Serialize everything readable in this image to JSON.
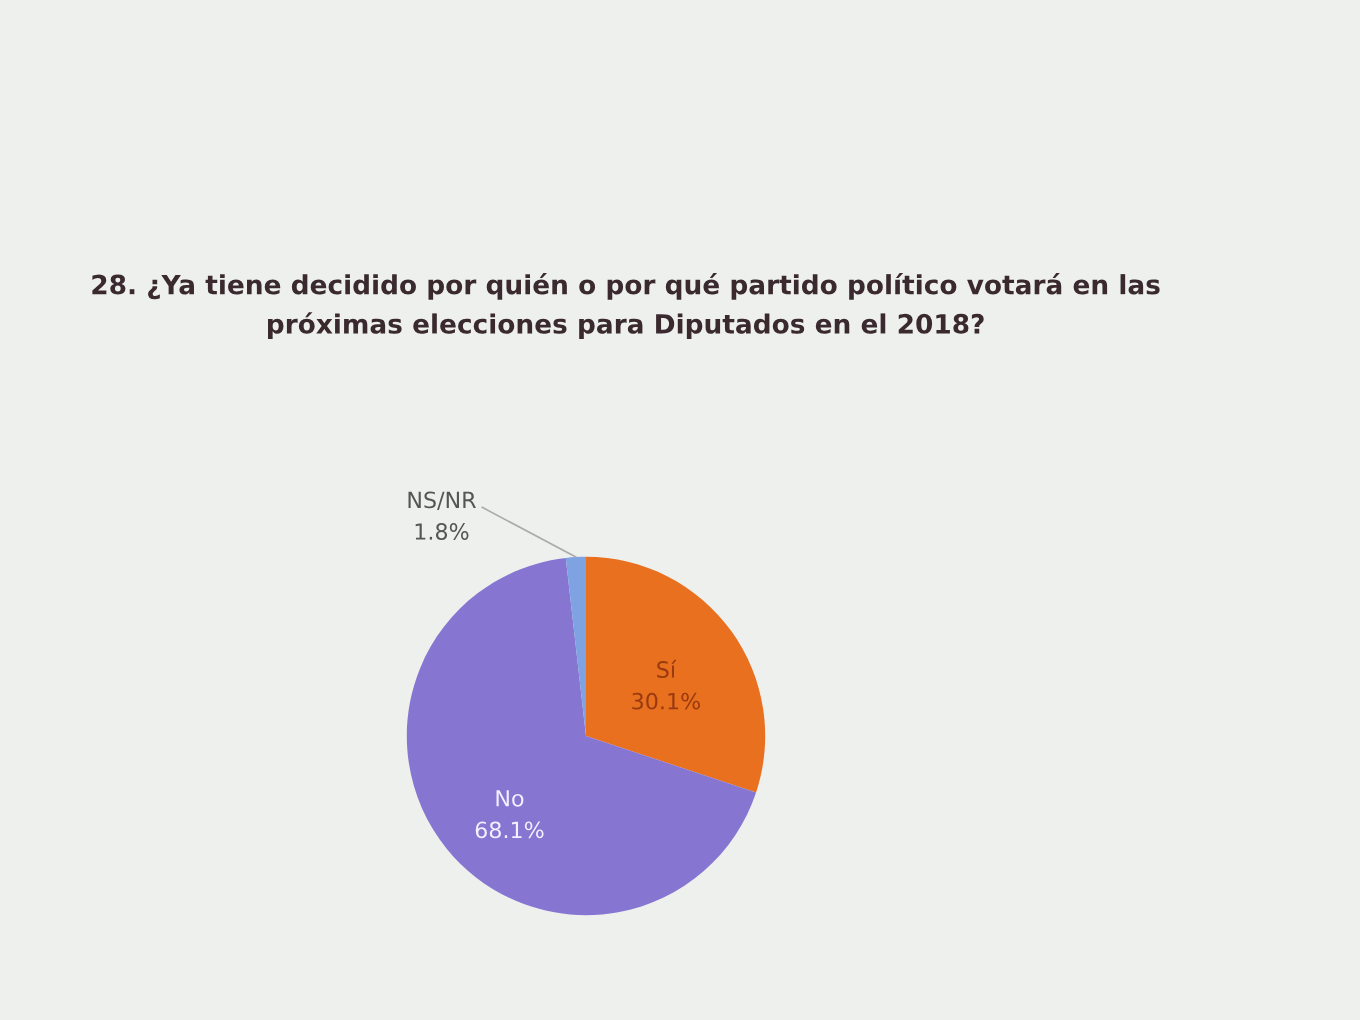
{
  "chart_data": {
    "type": "pie",
    "title": "28. ¿Ya tiene decidido por quién o por qué partido político votará en las\npróximas elecciones para Diputados en el 2018?",
    "categories": [
      "Sí",
      "No",
      "NS/NR"
    ],
    "values": [
      30.1,
      68.1,
      1.8
    ],
    "value_labels": [
      "30.1%",
      "68.1%",
      "1.8%"
    ],
    "colors": [
      "#e8701e",
      "#8676d2",
      "#7ea2e2"
    ]
  }
}
